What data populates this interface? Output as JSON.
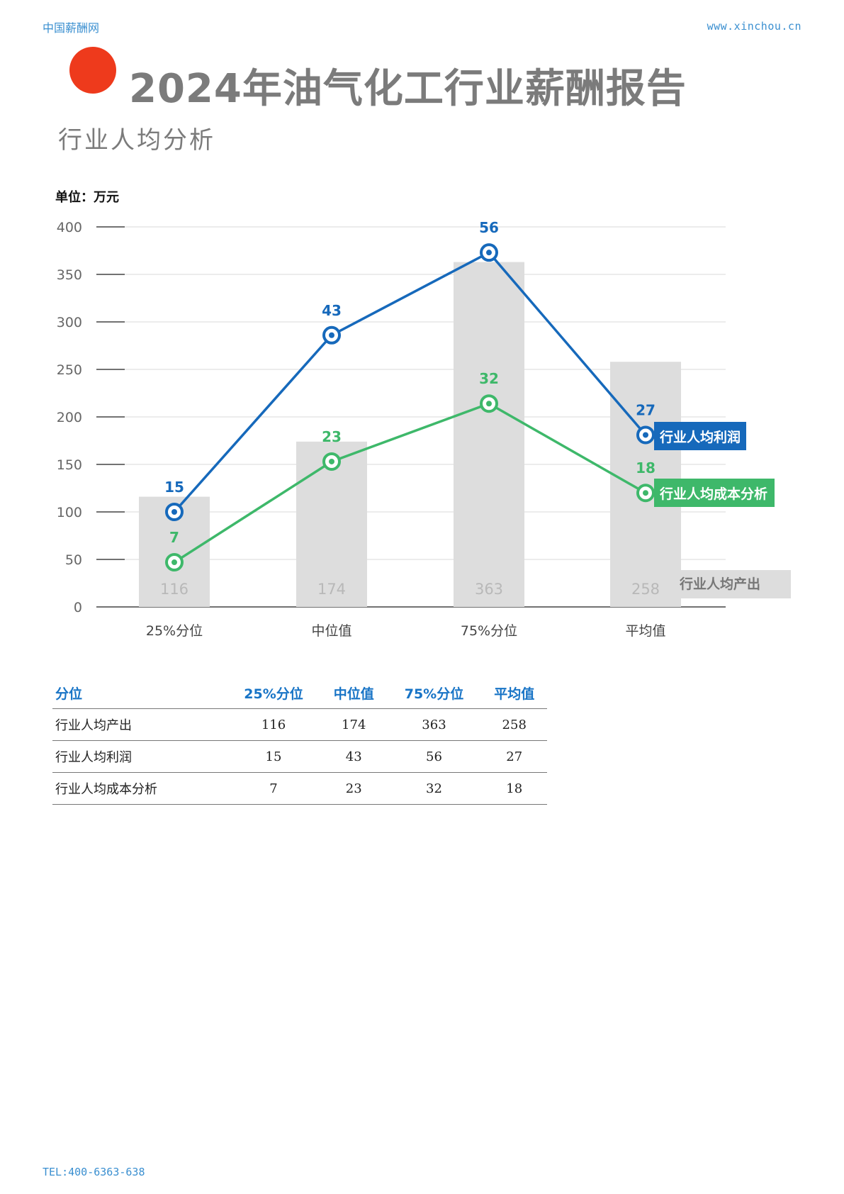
{
  "header": {
    "brand": "中国薪酬网",
    "site": "www.xinchou.cn"
  },
  "title": "2024年油气化工行业薪酬报告",
  "subtitle": "行业人均分析",
  "footer": {
    "tel": "TEL:400-6363-638"
  },
  "colors": {
    "profit": "#1669bb",
    "cost": "#3eb86a",
    "output_bar": "#dddddd",
    "accent_dot": "#ee3a1c"
  },
  "chart_data": {
    "type": "bar+line",
    "unit_label": "单位：万元",
    "categories": [
      "25%分位",
      "中位值",
      "75%分位",
      "平均值"
    ],
    "y_ticks": [
      "400",
      "350",
      "300",
      "250",
      "200",
      "150",
      "100",
      "50",
      "0"
    ],
    "ylim": [
      0,
      400
    ],
    "bars": {
      "name": "行业人均产出",
      "values": [
        116,
        174,
        363,
        258
      ]
    },
    "lines": [
      {
        "name": "行业人均利润",
        "labels": [
          15,
          43,
          56,
          27
        ],
        "plot_y": [
          100,
          286,
          373,
          181
        ]
      },
      {
        "name": "行业人均成本分析",
        "labels": [
          7,
          23,
          32,
          18
        ],
        "plot_y": [
          47,
          153,
          214,
          120
        ]
      }
    ],
    "grid": true,
    "legend": "inline-right"
  },
  "table": {
    "headers": [
      "分位",
      "25%分位",
      "中位值",
      "75%分位",
      "平均值"
    ],
    "rows": [
      {
        "label": "行业人均产出",
        "values": [
          "116",
          "174",
          "363",
          "258"
        ]
      },
      {
        "label": "行业人均利润",
        "values": [
          "15",
          "43",
          "56",
          "27"
        ]
      },
      {
        "label": "行业人均成本分析",
        "values": [
          "7",
          "23",
          "32",
          "18"
        ]
      }
    ]
  }
}
